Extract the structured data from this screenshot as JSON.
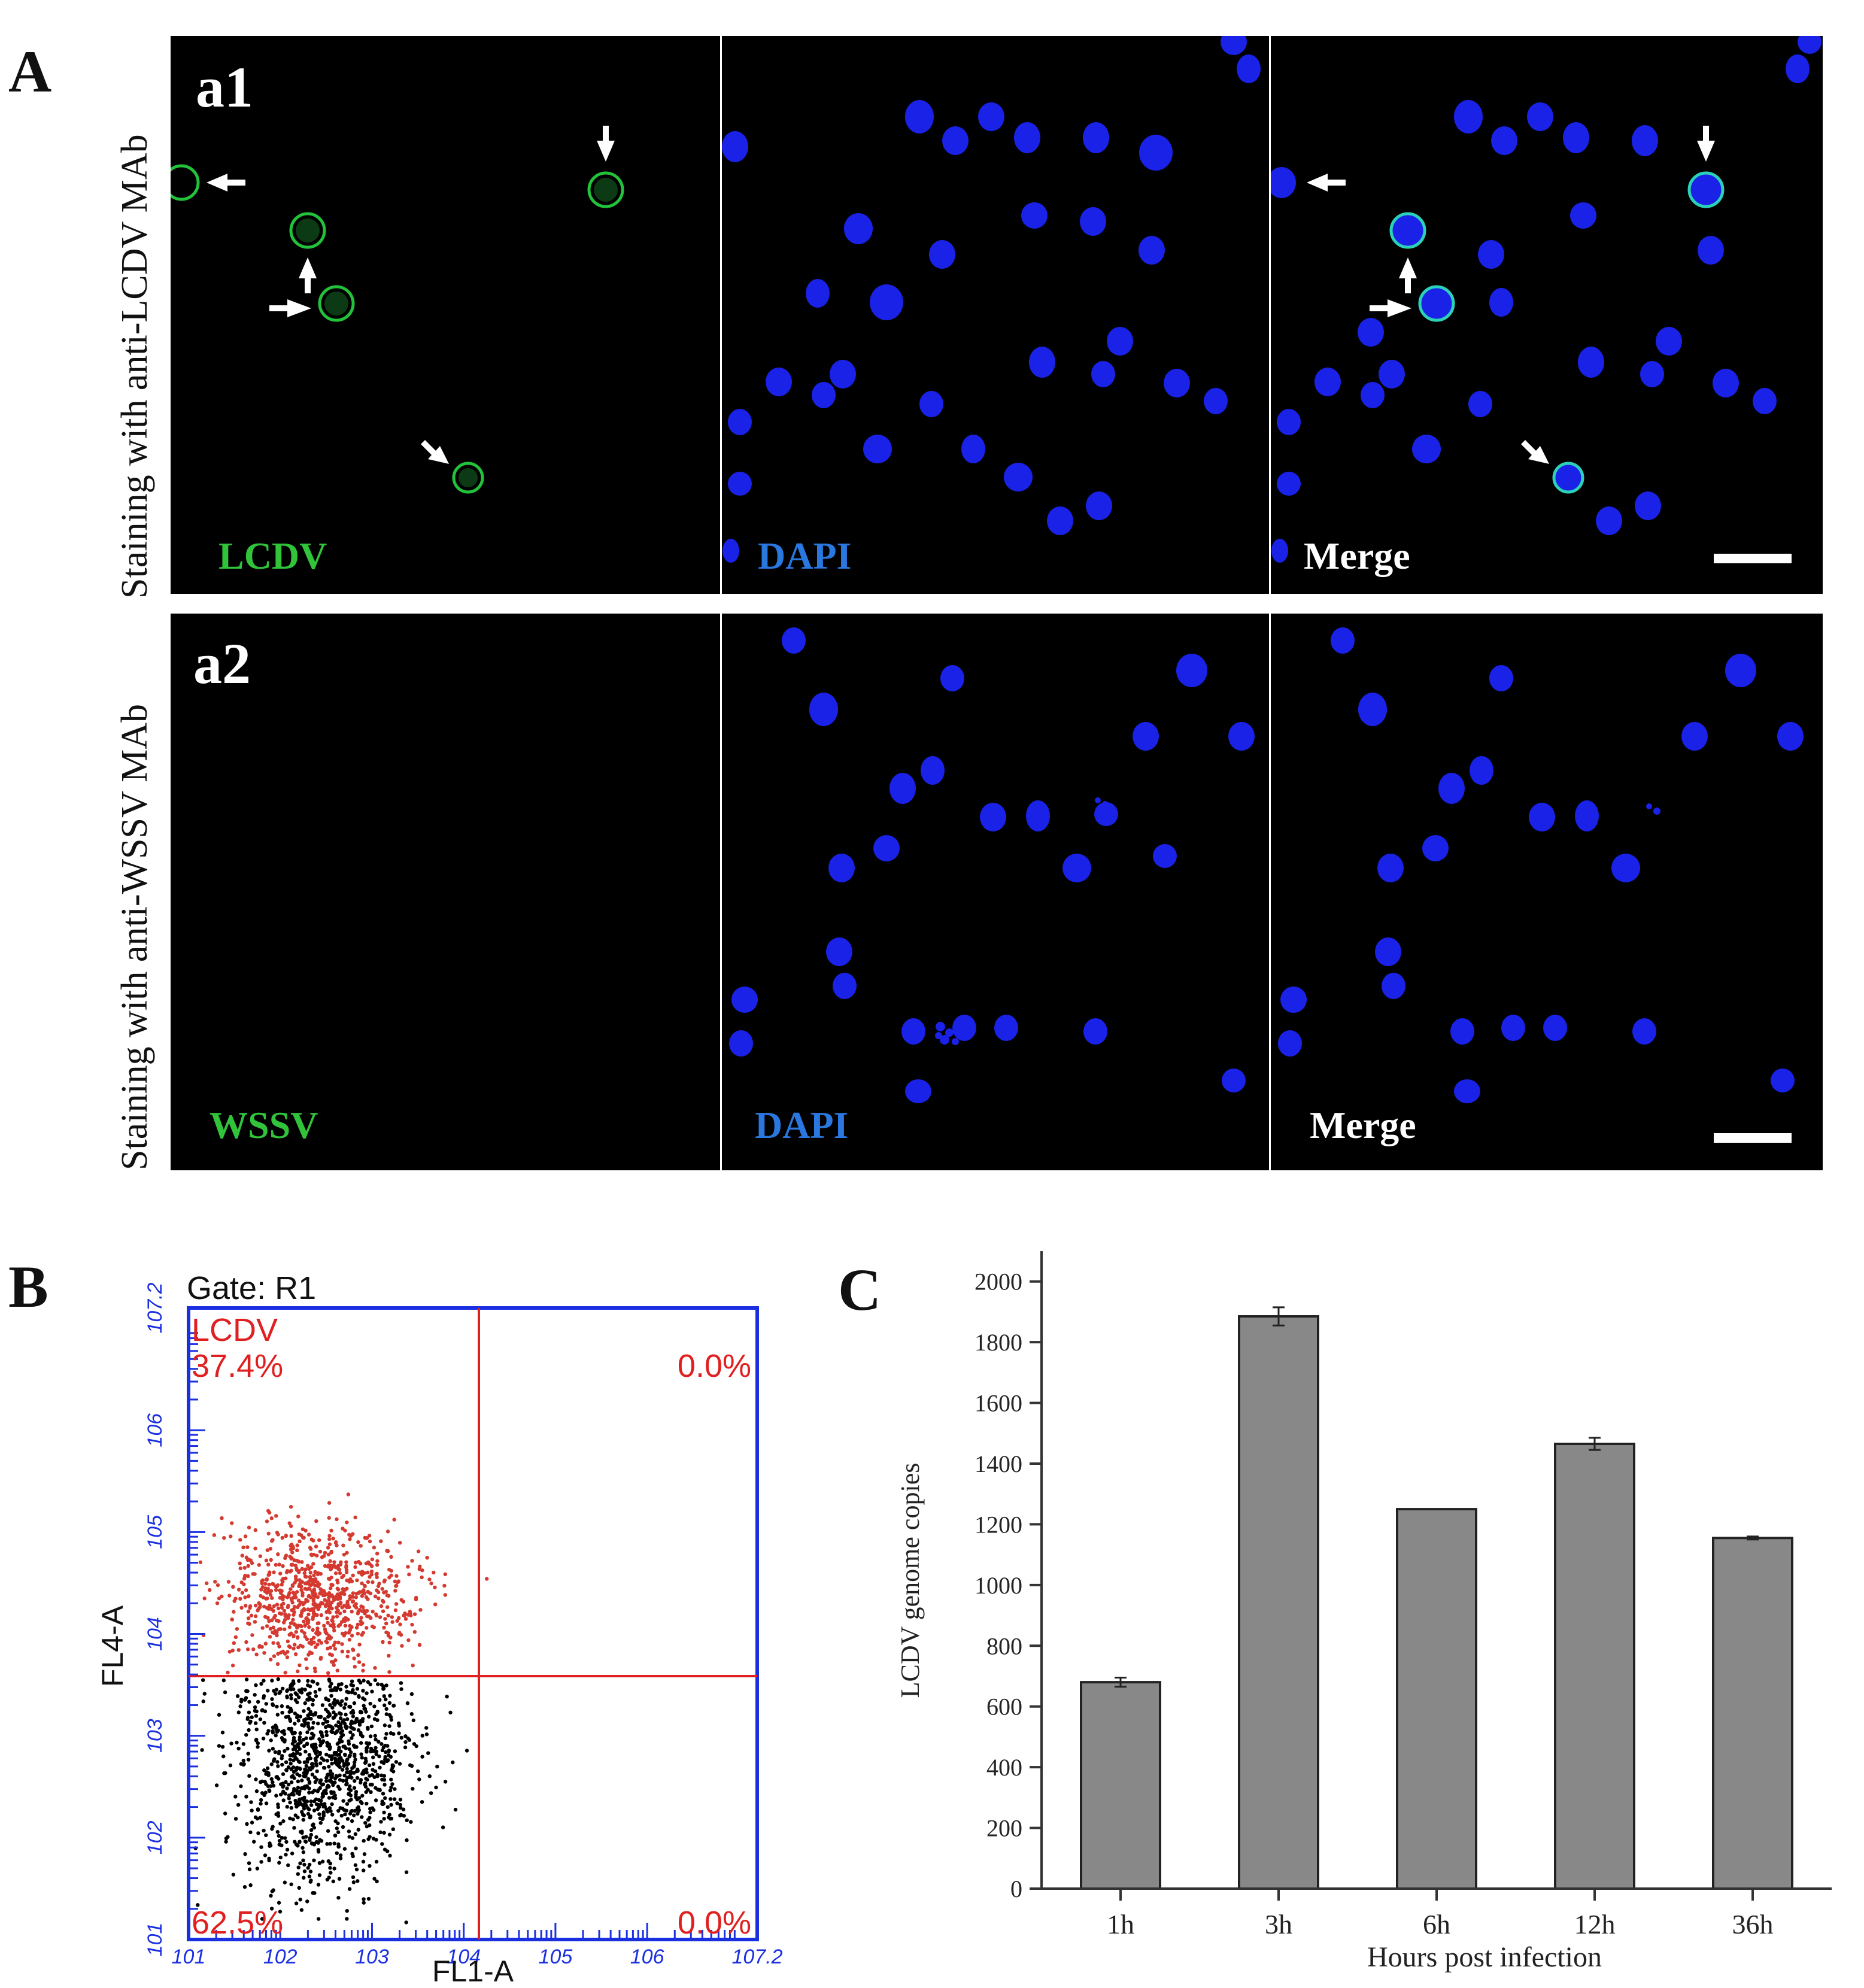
{
  "figure": {
    "panel_a": {
      "letter": "A",
      "rows": [
        {
          "id": "a1",
          "row_label": "Staining with anti-LCDV MAb",
          "panels": [
            {
              "label": "LCDV",
              "channel": "green",
              "label_color": "#31c43a"
            },
            {
              "label": "DAPI",
              "channel": "blue",
              "label_color": "#2a77e0"
            },
            {
              "label": "Merge",
              "channel": "merge",
              "label_color": "#ffffff"
            }
          ]
        },
        {
          "id": "a2",
          "row_label": "Staining with anti-WSSV MAb",
          "panels": [
            {
              "label": "WSSV",
              "channel": "green",
              "label_color": "#31c43a"
            },
            {
              "label": "DAPI",
              "channel": "blue",
              "label_color": "#2a77e0"
            },
            {
              "label": "Merge",
              "channel": "merge",
              "label_color": "#ffffff"
            }
          ]
        }
      ]
    },
    "panel_b": {
      "letter": "B",
      "gate": "Gate: R1",
      "quadrants": {
        "upper_left_name": "LCDV",
        "upper_left": "37.4%",
        "upper_right": "0.0%",
        "lower_left": "62.5%",
        "lower_right": "0.0%"
      },
      "x_label": "FL1-A",
      "y_label": "FL4-A",
      "x_ticks": [
        "10^1",
        "10^2",
        "10^3",
        "10^4",
        "10^5",
        "10^6",
        "10^7.2"
      ],
      "y_ticks": [
        "10^1",
        "10^2",
        "10^3",
        "10^4",
        "10^5",
        "10^6",
        "10^7.2"
      ],
      "colors": {
        "axis": "#1a2fe0",
        "gate": "#e02020",
        "positive": "#d43a30",
        "negative": "#000000"
      }
    },
    "panel_c": {
      "letter": "C",
      "chart_data": {
        "type": "bar",
        "categories": [
          "1h",
          "3h",
          "6h",
          "12h",
          "36h"
        ],
        "values": [
          680,
          1885,
          1250,
          1465,
          1155
        ],
        "errors": [
          15,
          30,
          0,
          20,
          5
        ],
        "xlabel": "Hours post infection",
        "ylabel": "LCDV genome copies",
        "ylim": [
          0,
          2100
        ],
        "y_ticks": [
          0,
          200,
          400,
          600,
          800,
          1000,
          1200,
          1400,
          1600,
          1800,
          2000
        ],
        "bar_color": "#888888"
      }
    }
  }
}
